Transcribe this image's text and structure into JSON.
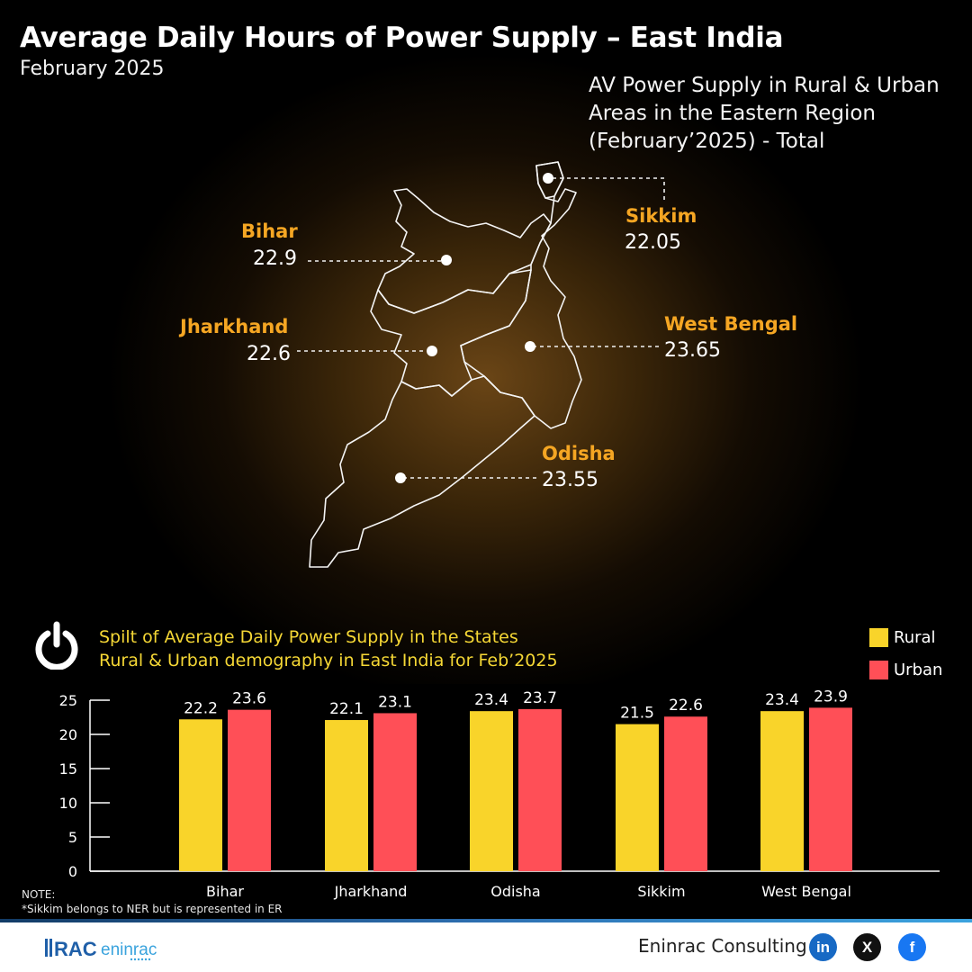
{
  "header": {
    "title": "Average Daily Hours of Power Supply – East India",
    "subtitle": "February 2025",
    "map_caption": "AV Power Supply in Rural & Urban Areas in the Eastern Region (February’2025) - Total"
  },
  "map_labels": [
    {
      "name": "Bihar",
      "value": "22.9"
    },
    {
      "name": "Jharkhand",
      "value": "22.6"
    },
    {
      "name": "Sikkim",
      "value": "22.05"
    },
    {
      "name": "West Bengal",
      "value": "23.65"
    },
    {
      "name": "Odisha",
      "value": "23.55"
    }
  ],
  "split_title_line1": "Spilt of Average Daily Power Supply in the States",
  "split_title_line2": "Rural & Urban demography in East India for Feb’2025",
  "colors": {
    "rural": "#f9d42a",
    "urban": "#ff4f57",
    "state_name": "#f5a623",
    "title_accent": "#f5d735"
  },
  "chart_data": {
    "type": "bar",
    "categories": [
      "Bihar",
      "Jharkhand",
      "Odisha",
      "Sikkim",
      "West Bengal"
    ],
    "series": [
      {
        "name": "Rural",
        "values": [
          22.2,
          22.1,
          23.4,
          21.5,
          23.4
        ]
      },
      {
        "name": "Urban",
        "values": [
          23.6,
          23.1,
          23.7,
          22.6,
          23.9
        ]
      }
    ],
    "ylim": [
      0,
      25
    ],
    "yticks": [
      0,
      5,
      10,
      15,
      20,
      25
    ],
    "grid": false,
    "legend": "top-right"
  },
  "note_title": "NOTE:",
  "note_text": "*Sikkim belongs to NER but is represented in ER",
  "footer": {
    "logo_text": "RAC eninrac",
    "brand": "Eninrac Consulting",
    "social": [
      {
        "icon": "linkedin-icon",
        "glyph": "in",
        "color": "#1769c4"
      },
      {
        "icon": "x-icon",
        "glyph": "X",
        "color": "#111111"
      },
      {
        "icon": "facebook-icon",
        "glyph": "f",
        "color": "#1877f2"
      }
    ]
  }
}
